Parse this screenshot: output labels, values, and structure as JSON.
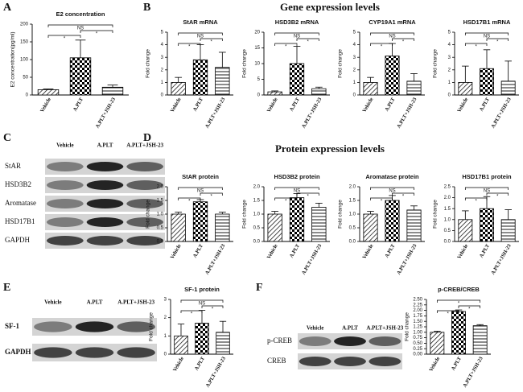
{
  "panels": [
    "A",
    "B",
    "C",
    "D",
    "E",
    "F"
  ],
  "headings": {
    "gene": "Gene expression levels",
    "protein": "Protein expression levels"
  },
  "blots": [
    {
      "lanes": [
        "Vehicle",
        "A.PLT",
        "A.PLT+JSH-23"
      ],
      "rows": [
        "StAR",
        "HSD3B2",
        "Aromatase",
        "HSD17B1",
        "GAPDH"
      ]
    },
    {
      "lanes": [
        "Vehicle",
        "A.PLT",
        "A.PLT+JSH-23"
      ],
      "rows": [
        "SF-1",
        "GAPDH"
      ]
    },
    {
      "lanes": [
        "Vehicle",
        "A.PLT",
        "A.PLT+JSH-23"
      ],
      "rows": [
        "p-CREB",
        "CREB"
      ]
    }
  ],
  "chart_data": [
    {
      "type": "bar",
      "title": "E2 concentration",
      "ylabel": "E2 concentration(pg/ml)",
      "categories": [
        "Vehicle",
        "A.PLT",
        "A.PLT+JSH-23"
      ],
      "values": [
        15,
        105,
        22
      ],
      "errors": [
        2,
        50,
        6
      ],
      "ylim": [
        0,
        200
      ],
      "yticks": [
        0,
        50,
        100,
        150,
        200
      ],
      "comparisons": [
        "*",
        "*",
        "NS"
      ]
    },
    {
      "type": "bar",
      "title": "StAR mRNA",
      "ylabel": "Fold change",
      "categories": [
        "Vehicle",
        "A.PLT",
        "A.PLT+JSH-23"
      ],
      "values": [
        1.0,
        2.8,
        2.2
      ],
      "errors": [
        0.4,
        1.2,
        1.2
      ],
      "ylim": [
        0,
        5
      ],
      "yticks": [
        0,
        1,
        2,
        3,
        4,
        5
      ],
      "comparisons": [
        "*",
        "*",
        "NS"
      ]
    },
    {
      "type": "bar",
      "title": "HSD3B2 mRNA",
      "ylabel": "Fold change",
      "categories": [
        "Vehicle",
        "A.PLT",
        "A.PLT+JSH-23"
      ],
      "values": [
        1,
        10,
        2
      ],
      "errors": [
        0.3,
        5.5,
        0.5
      ],
      "ylim": [
        0,
        20
      ],
      "yticks": [
        0,
        5,
        10,
        15,
        20
      ],
      "comparisons": [
        "*",
        "*",
        "NS"
      ]
    },
    {
      "type": "bar",
      "title": "CYP19A1 mRNA",
      "ylabel": "Fold change",
      "categories": [
        "Vehicle",
        "A.PLT",
        "A.PLT+JSH-23"
      ],
      "values": [
        1.0,
        3.1,
        1.1
      ],
      "errors": [
        0.4,
        1.0,
        0.6
      ],
      "ylim": [
        0,
        5
      ],
      "yticks": [
        0,
        1,
        2,
        3,
        4,
        5
      ],
      "comparisons": [
        "*",
        "*",
        "NS"
      ]
    },
    {
      "type": "bar",
      "title": "HSD17B1 mRNA",
      "ylabel": "Fold change",
      "categories": [
        "Vehicle",
        "A.PLT",
        "A.PLT+JSH-23"
      ],
      "values": [
        1.0,
        2.1,
        1.1
      ],
      "errors": [
        1.3,
        1.5,
        1.6
      ],
      "ylim": [
        0,
        5
      ],
      "yticks": [
        0,
        1,
        2,
        3,
        4,
        5
      ],
      "comparisons": [
        "*",
        "*",
        "NS"
      ]
    },
    {
      "type": "bar",
      "title": "StAR protein",
      "ylabel": "Fold change",
      "categories": [
        "Vehicle",
        "A.PLT",
        "A.PLT+JSH-23"
      ],
      "values": [
        1.0,
        1.45,
        1.0
      ],
      "errors": [
        0.07,
        0.08,
        0.07
      ],
      "ylim": [
        0,
        2
      ],
      "yticks": [
        {
          "value": 0,
          "label": "0.0"
        },
        {
          "value": 0.5,
          "label": "0.5"
        },
        {
          "value": 1,
          "label": "1.0"
        },
        {
          "value": 1.5,
          "label": "1.5"
        },
        {
          "value": 2,
          "label": "2.0"
        }
      ],
      "comparisons": [
        "*",
        "*",
        "NS"
      ]
    },
    {
      "type": "bar",
      "title": "HSD3B2 protein",
      "ylabel": "Fold change",
      "categories": [
        "Vehicle",
        "A.PLT",
        "A.PLT+JSH-23"
      ],
      "values": [
        1.0,
        1.6,
        1.25
      ],
      "errors": [
        0.1,
        0.15,
        0.15
      ],
      "ylim": [
        0,
        2
      ],
      "yticks": [
        {
          "value": 0,
          "label": "0.0"
        },
        {
          "value": 0.5,
          "label": "0.5"
        },
        {
          "value": 1,
          "label": "1.0"
        },
        {
          "value": 1.5,
          "label": "1.5"
        },
        {
          "value": 2,
          "label": "2.0"
        }
      ],
      "comparisons": [
        "*",
        "*",
        "NS"
      ]
    },
    {
      "type": "bar",
      "title": "Aromatase protein",
      "ylabel": "Fold change",
      "categories": [
        "Vehicle",
        "A.PLT",
        "A.PLT+JSH-23"
      ],
      "values": [
        1.0,
        1.5,
        1.15
      ],
      "errors": [
        0.1,
        0.18,
        0.15
      ],
      "ylim": [
        0,
        2
      ],
      "yticks": [
        {
          "value": 0,
          "label": "0.0"
        },
        {
          "value": 0.5,
          "label": "0.5"
        },
        {
          "value": 1,
          "label": "1.0"
        },
        {
          "value": 1.5,
          "label": "1.5"
        },
        {
          "value": 2,
          "label": "2.0"
        }
      ],
      "comparisons": [
        "*",
        "*",
        "NS"
      ]
    },
    {
      "type": "bar",
      "title": "HSD17B1 protein",
      "ylabel": "Fold change",
      "categories": [
        "Vehicle",
        "A.PLT",
        "A.PLT+JSH-23"
      ],
      "values": [
        1.0,
        1.5,
        1.0
      ],
      "errors": [
        0.4,
        0.55,
        0.45
      ],
      "ylim": [
        0,
        2.5
      ],
      "yticks": [
        {
          "value": 0,
          "label": "0.0"
        },
        {
          "value": 0.5,
          "label": "0.5"
        },
        {
          "value": 1,
          "label": "1.0"
        },
        {
          "value": 1.5,
          "label": "1.5"
        },
        {
          "value": 2,
          "label": "2.0"
        },
        {
          "value": 2.5,
          "label": "2.5"
        }
      ],
      "comparisons": [
        "*",
        "*",
        "NS"
      ]
    },
    {
      "type": "bar",
      "title": "SF-1 protein",
      "ylabel": "Fold change",
      "categories": [
        "Vehicle",
        "A.PLT",
        "A.PLT+JSH-23"
      ],
      "values": [
        1.0,
        1.7,
        1.2
      ],
      "errors": [
        0.65,
        0.7,
        0.6
      ],
      "ylim": [
        0,
        3
      ],
      "yticks": [
        0,
        1,
        2,
        3
      ],
      "comparisons": [
        "*",
        "*",
        "NS"
      ]
    },
    {
      "type": "bar",
      "title": "p-CREB/CREB",
      "ylabel": "Fold change",
      "categories": [
        "Vehicle",
        "A.PLT",
        "A.PLT+JSH-23"
      ],
      "values": [
        1.0,
        1.95,
        1.3
      ],
      "errors": [
        0.05,
        0.07,
        0.05
      ],
      "ylim": [
        0,
        2.5
      ],
      "yticks": [
        {
          "value": 0,
          "label": "0.00"
        },
        {
          "value": 0.25,
          "label": "0.25"
        },
        {
          "value": 0.5,
          "label": "0.50"
        },
        {
          "value": 0.75,
          "label": "0.75"
        },
        {
          "value": 1,
          "label": "1.00"
        },
        {
          "value": 1.25,
          "label": "1.25"
        },
        {
          "value": 1.5,
          "label": "1.50"
        },
        {
          "value": 1.75,
          "label": "1.75"
        },
        {
          "value": 2,
          "label": "2.00"
        },
        {
          "value": 2.25,
          "label": "2.25"
        },
        {
          "value": 2.5,
          "label": "2.50"
        }
      ],
      "comparisons": [
        "*",
        "*",
        "*"
      ]
    }
  ]
}
